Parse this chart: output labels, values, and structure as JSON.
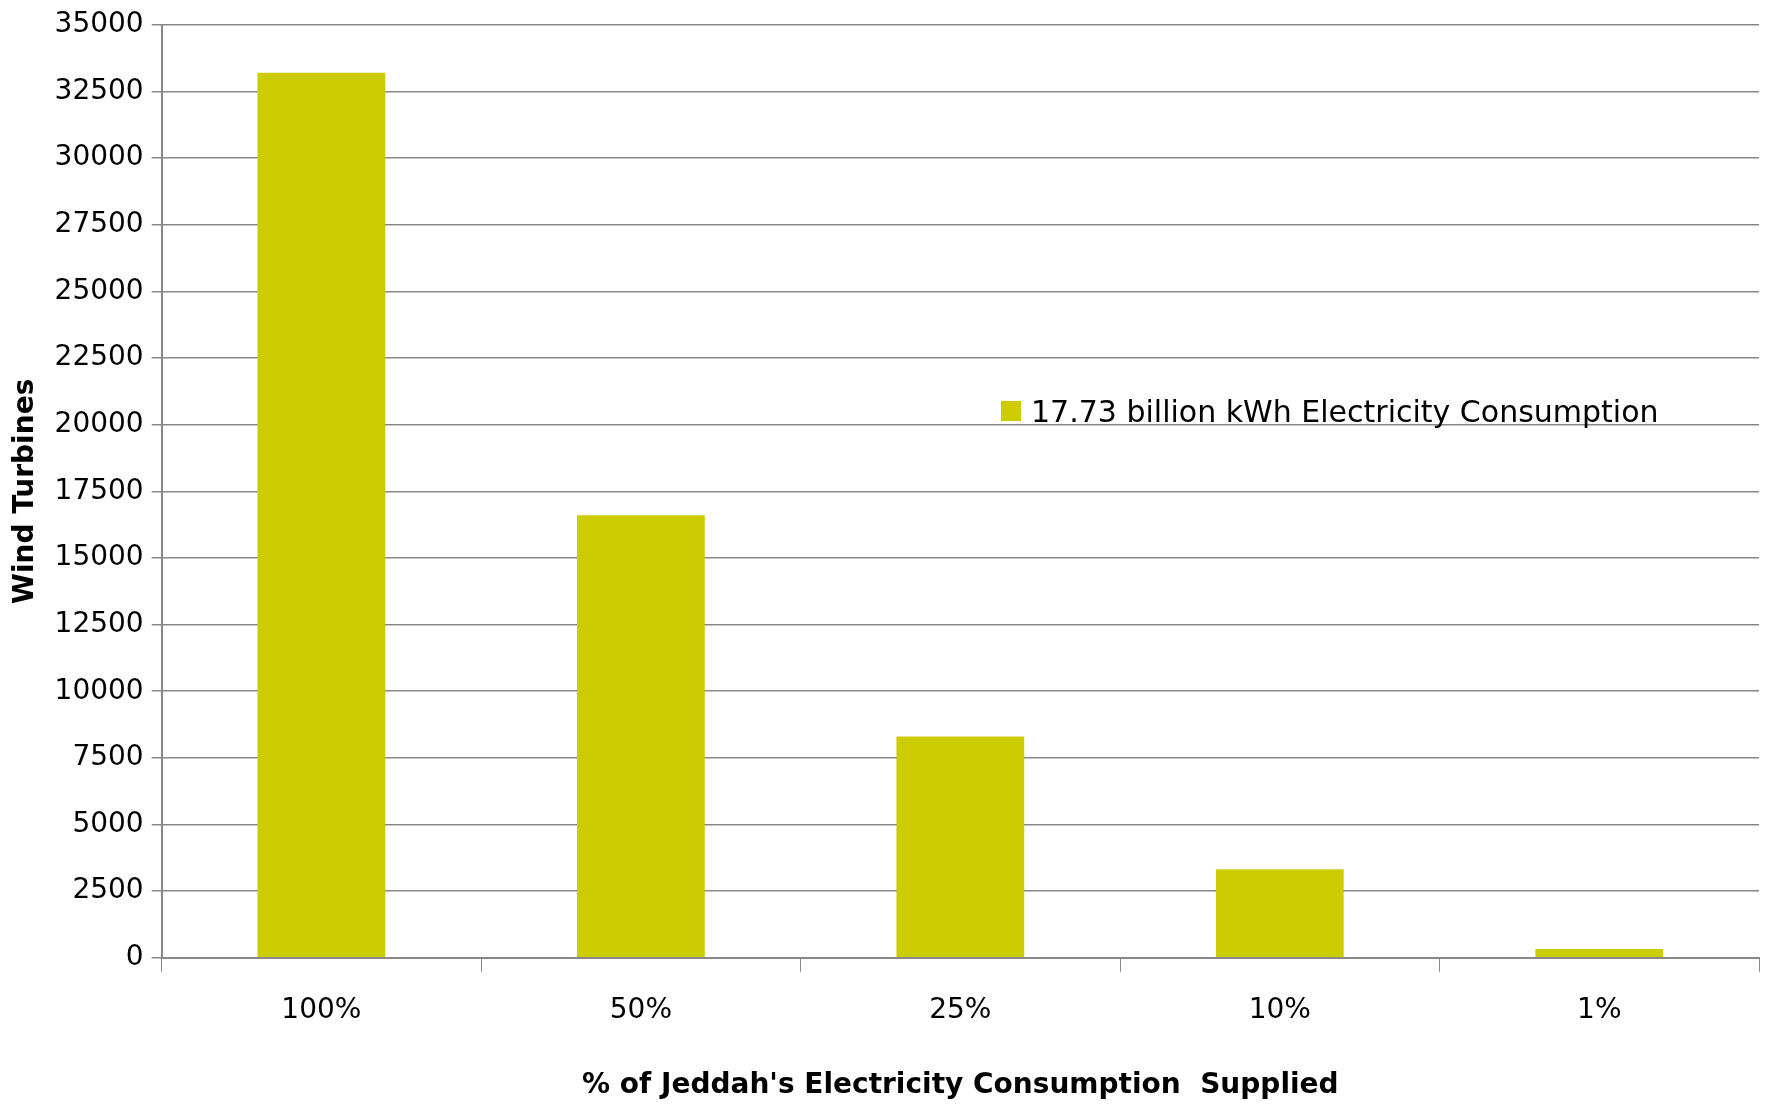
{
  "chart_data": {
    "type": "bar",
    "xlabel": "% of Jeddah's Electricity Consumption  Supplied",
    "ylabel": "Wind Turbines",
    "categories": [
      "100%",
      "50%",
      "25%",
      "10%",
      "1%"
    ],
    "series": [
      {
        "name": "17.73 billion kWh Electricity Consumption",
        "color": "#cccc00",
        "values": [
          33200,
          16600,
          8300,
          3320,
          330
        ]
      }
    ],
    "ylim": [
      0,
      35000
    ],
    "yticks": [
      0,
      2500,
      5000,
      7500,
      10000,
      12500,
      15000,
      17500,
      20000,
      22500,
      25000,
      27500,
      30000,
      32500,
      35000
    ],
    "grid": "y",
    "legend": "right"
  }
}
